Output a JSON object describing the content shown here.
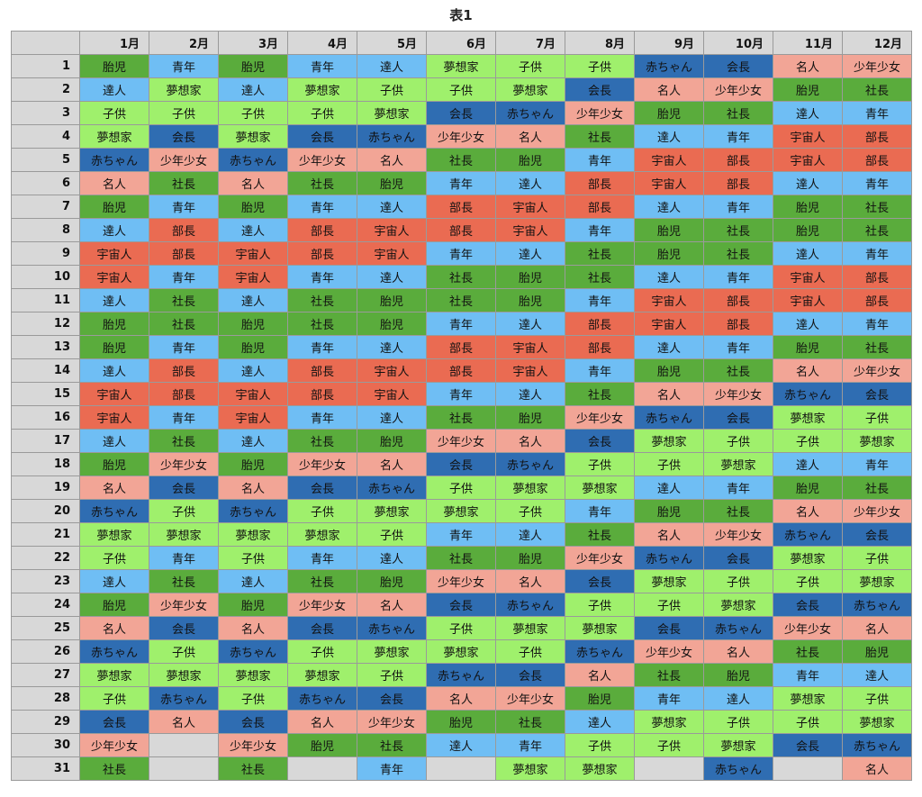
{
  "title": "表1",
  "table": {
    "columns": [
      "1月",
      "2月",
      "3月",
      "4月",
      "5月",
      "6月",
      "7月",
      "8月",
      "9月",
      "10月",
      "11月",
      "12月"
    ],
    "cell_colors": {
      "胎児": "#5aac3c",
      "社長": "#5aac3c",
      "青年": "#6fbef4",
      "達人": "#6fbef4",
      "夢想家": "#9ff06c",
      "子供": "#9ff06c",
      "赤ちゃん": "#2f6db2",
      "会長": "#2f6db2",
      "名人": "#f2a596",
      "少年少女": "#f2a596",
      "宇宙人": "#ea6b52",
      "部長": "#ea6b52"
    },
    "empty_color": "#d8d8d8",
    "rows": [
      {
        "label": 1,
        "cells": [
          "胎児",
          "青年",
          "胎児",
          "青年",
          "達人",
          "夢想家",
          "子供",
          "子供",
          "赤ちゃん",
          "会長",
          "名人",
          "少年少女"
        ]
      },
      {
        "label": 2,
        "cells": [
          "達人",
          "夢想家",
          "達人",
          "夢想家",
          "子供",
          "子供",
          "夢想家",
          "会長",
          "名人",
          "少年少女",
          "胎児",
          "社長"
        ]
      },
      {
        "label": 3,
        "cells": [
          "子供",
          "子供",
          "子供",
          "子供",
          "夢想家",
          "会長",
          "赤ちゃん",
          "少年少女",
          "胎児",
          "社長",
          "達人",
          "青年"
        ]
      },
      {
        "label": 4,
        "cells": [
          "夢想家",
          "会長",
          "夢想家",
          "会長",
          "赤ちゃん",
          "少年少女",
          "名人",
          "社長",
          "達人",
          "青年",
          "宇宙人",
          "部長"
        ]
      },
      {
        "label": 5,
        "cells": [
          "赤ちゃん",
          "少年少女",
          "赤ちゃん",
          "少年少女",
          "名人",
          "社長",
          "胎児",
          "青年",
          "宇宙人",
          "部長",
          "宇宙人",
          "部長"
        ]
      },
      {
        "label": 6,
        "cells": [
          "名人",
          "社長",
          "名人",
          "社長",
          "胎児",
          "青年",
          "達人",
          "部長",
          "宇宙人",
          "部長",
          "達人",
          "青年"
        ]
      },
      {
        "label": 7,
        "cells": [
          "胎児",
          "青年",
          "胎児",
          "青年",
          "達人",
          "部長",
          "宇宙人",
          "部長",
          "達人",
          "青年",
          "胎児",
          "社長"
        ]
      },
      {
        "label": 8,
        "cells": [
          "達人",
          "部長",
          "達人",
          "部長",
          "宇宙人",
          "部長",
          "宇宙人",
          "青年",
          "胎児",
          "社長",
          "胎児",
          "社長"
        ]
      },
      {
        "label": 9,
        "cells": [
          "宇宙人",
          "部長",
          "宇宙人",
          "部長",
          "宇宙人",
          "青年",
          "達人",
          "社長",
          "胎児",
          "社長",
          "達人",
          "青年"
        ]
      },
      {
        "label": 10,
        "cells": [
          "宇宙人",
          "青年",
          "宇宙人",
          "青年",
          "達人",
          "社長",
          "胎児",
          "社長",
          "達人",
          "青年",
          "宇宙人",
          "部長"
        ]
      },
      {
        "label": 11,
        "cells": [
          "達人",
          "社長",
          "達人",
          "社長",
          "胎児",
          "社長",
          "胎児",
          "青年",
          "宇宙人",
          "部長",
          "宇宙人",
          "部長"
        ]
      },
      {
        "label": 12,
        "cells": [
          "胎児",
          "社長",
          "胎児",
          "社長",
          "胎児",
          "青年",
          "達人",
          "部長",
          "宇宙人",
          "部長",
          "達人",
          "青年"
        ]
      },
      {
        "label": 13,
        "cells": [
          "胎児",
          "青年",
          "胎児",
          "青年",
          "達人",
          "部長",
          "宇宙人",
          "部長",
          "達人",
          "青年",
          "胎児",
          "社長"
        ]
      },
      {
        "label": 14,
        "cells": [
          "達人",
          "部長",
          "達人",
          "部長",
          "宇宙人",
          "部長",
          "宇宙人",
          "青年",
          "胎児",
          "社長",
          "名人",
          "少年少女"
        ]
      },
      {
        "label": 15,
        "cells": [
          "宇宙人",
          "部長",
          "宇宙人",
          "部長",
          "宇宙人",
          "青年",
          "達人",
          "社長",
          "名人",
          "少年少女",
          "赤ちゃん",
          "会長"
        ]
      },
      {
        "label": 16,
        "cells": [
          "宇宙人",
          "青年",
          "宇宙人",
          "青年",
          "達人",
          "社長",
          "胎児",
          "少年少女",
          "赤ちゃん",
          "会長",
          "夢想家",
          "子供"
        ]
      },
      {
        "label": 17,
        "cells": [
          "達人",
          "社長",
          "達人",
          "社長",
          "胎児",
          "少年少女",
          "名人",
          "会長",
          "夢想家",
          "子供",
          "子供",
          "夢想家"
        ]
      },
      {
        "label": 18,
        "cells": [
          "胎児",
          "少年少女",
          "胎児",
          "少年少女",
          "名人",
          "会長",
          "赤ちゃん",
          "子供",
          "子供",
          "夢想家",
          "達人",
          "青年"
        ]
      },
      {
        "label": 19,
        "cells": [
          "名人",
          "会長",
          "名人",
          "会長",
          "赤ちゃん",
          "子供",
          "夢想家",
          "夢想家",
          "達人",
          "青年",
          "胎児",
          "社長"
        ]
      },
      {
        "label": 20,
        "cells": [
          "赤ちゃん",
          "子供",
          "赤ちゃん",
          "子供",
          "夢想家",
          "夢想家",
          "子供",
          "青年",
          "胎児",
          "社長",
          "名人",
          "少年少女"
        ]
      },
      {
        "label": 21,
        "cells": [
          "夢想家",
          "夢想家",
          "夢想家",
          "夢想家",
          "子供",
          "青年",
          "達人",
          "社長",
          "名人",
          "少年少女",
          "赤ちゃん",
          "会長"
        ]
      },
      {
        "label": 22,
        "cells": [
          "子供",
          "青年",
          "子供",
          "青年",
          "達人",
          "社長",
          "胎児",
          "少年少女",
          "赤ちゃん",
          "会長",
          "夢想家",
          "子供"
        ]
      },
      {
        "label": 23,
        "cells": [
          "達人",
          "社長",
          "達人",
          "社長",
          "胎児",
          "少年少女",
          "名人",
          "会長",
          "夢想家",
          "子供",
          "子供",
          "夢想家"
        ]
      },
      {
        "label": 24,
        "cells": [
          "胎児",
          "少年少女",
          "胎児",
          "少年少女",
          "名人",
          "会長",
          "赤ちゃん",
          "子供",
          "子供",
          "夢想家",
          "会長",
          "赤ちゃん"
        ]
      },
      {
        "label": 25,
        "cells": [
          "名人",
          "会長",
          "名人",
          "会長",
          "赤ちゃん",
          "子供",
          "夢想家",
          "夢想家",
          "会長",
          "赤ちゃん",
          "少年少女",
          "名人"
        ]
      },
      {
        "label": 26,
        "cells": [
          "赤ちゃん",
          "子供",
          "赤ちゃん",
          "子供",
          "夢想家",
          "夢想家",
          "子供",
          "赤ちゃん",
          "少年少女",
          "名人",
          "社長",
          "胎児"
        ]
      },
      {
        "label": 27,
        "cells": [
          "夢想家",
          "夢想家",
          "夢想家",
          "夢想家",
          "子供",
          "赤ちゃん",
          "会長",
          "名人",
          "社長",
          "胎児",
          "青年",
          "達人"
        ]
      },
      {
        "label": 28,
        "cells": [
          "子供",
          "赤ちゃん",
          "子供",
          "赤ちゃん",
          "会長",
          "名人",
          "少年少女",
          "胎児",
          "青年",
          "達人",
          "夢想家",
          "子供"
        ]
      },
      {
        "label": 29,
        "cells": [
          "会長",
          "名人",
          "会長",
          "名人",
          "少年少女",
          "胎児",
          "社長",
          "達人",
          "夢想家",
          "子供",
          "子供",
          "夢想家"
        ]
      },
      {
        "label": 30,
        "cells": [
          "少年少女",
          null,
          "少年少女",
          "胎児",
          "社長",
          "達人",
          "青年",
          "子供",
          "子供",
          "夢想家",
          "会長",
          "赤ちゃん"
        ]
      },
      {
        "label": 31,
        "cells": [
          "社長",
          null,
          "社長",
          null,
          "青年",
          null,
          "夢想家",
          "夢想家",
          null,
          "赤ちゃん",
          null,
          "名人"
        ]
      }
    ]
  }
}
